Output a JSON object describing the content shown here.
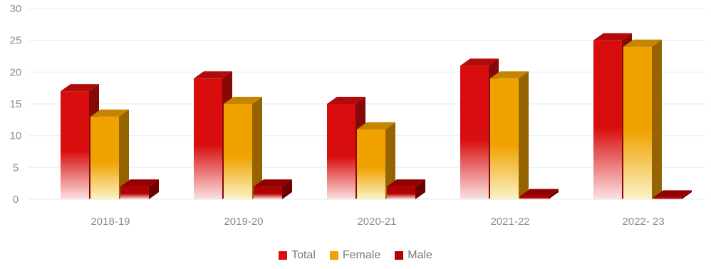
{
  "chart_data": {
    "type": "bar",
    "categories": [
      "2018-19",
      "2019-20",
      "2020-21",
      "2021-22",
      "2022- 23"
    ],
    "series": [
      {
        "name": "Total",
        "values": [
          17,
          19,
          15,
          21,
          25
        ],
        "color": "#d80d0d"
      },
      {
        "name": "Female",
        "values": [
          13,
          15,
          11,
          19,
          24
        ],
        "color": "#f0a200"
      },
      {
        "name": "Male",
        "values": [
          2,
          2,
          2,
          0.5,
          0.3
        ],
        "color": "#b30000"
      }
    ],
    "yticks": [
      0,
      5,
      10,
      15,
      20,
      25,
      30
    ],
    "ylim": [
      0,
      30
    ],
    "title": "",
    "xlabel": "",
    "ylabel": "",
    "grid": true,
    "legend_position": "bottom",
    "style": "3d-gradient"
  }
}
